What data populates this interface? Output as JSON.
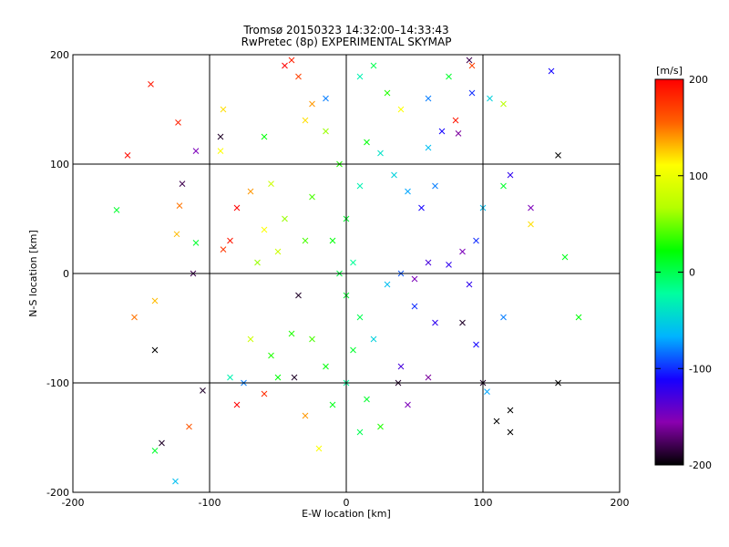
{
  "chart_data": {
    "type": "scatter",
    "title": "Tromsø 20150323 14:32:00–14:33:43",
    "subtitle": "RwPretec (8p) EXPERIMENTAL SKYMAP",
    "xlabel": "E-W location [km]",
    "ylabel": "N-S location [km]",
    "xlim": [
      -200,
      200
    ],
    "ylim": [
      -200,
      200
    ],
    "xticks": [
      "-200",
      "-100",
      "0",
      "100",
      "200"
    ],
    "yticks": [
      "-200",
      "-100",
      "0",
      "100",
      "200"
    ],
    "grid_lines": [
      -100,
      0,
      100
    ],
    "colorbar": {
      "label": "[m/s]",
      "range": [
        -200,
        200
      ],
      "ticks": [
        "200",
        "100",
        "0",
        "-100",
        "-200"
      ],
      "colormap": [
        "#000000",
        "#8a00b0",
        "#1600ff",
        "#00b4ff",
        "#00ffa0",
        "#00ff00",
        "#b4ff00",
        "#ffff00",
        "#ff6000",
        "#ff0000"
      ]
    },
    "markers": {
      "cross": "x",
      "dot": "."
    },
    "series": [
      {
        "values": [
          {
            "x": -160,
            "y": 108,
            "v": 195,
            "m": "x"
          },
          {
            "x": -143,
            "y": 173,
            "v": 190,
            "m": "x"
          },
          {
            "x": -123,
            "y": 138,
            "v": 185,
            "m": "x"
          },
          {
            "x": -110,
            "y": 112,
            "v": -150,
            "m": "x"
          },
          {
            "x": -168,
            "y": 58,
            "v": 10,
            "m": "x"
          },
          {
            "x": -120,
            "y": 82,
            "v": -180,
            "m": "x"
          },
          {
            "x": -110,
            "y": 28,
            "v": 10,
            "m": "x"
          },
          {
            "x": -122,
            "y": 62,
            "v": 150,
            "m": "x"
          },
          {
            "x": -124,
            "y": 36,
            "v": 130,
            "m": "x"
          },
          {
            "x": -112,
            "y": 0,
            "v": -180,
            "m": "x"
          },
          {
            "x": -140,
            "y": -25,
            "v": 130,
            "m": "x"
          },
          {
            "x": -155,
            "y": -40,
            "v": 150,
            "m": "x"
          },
          {
            "x": -140,
            "y": -70,
            "v": -200,
            "m": "x"
          },
          {
            "x": -105,
            "y": -107,
            "v": -190,
            "m": "x"
          },
          {
            "x": -135,
            "y": -155,
            "v": -190,
            "m": "x"
          },
          {
            "x": -140,
            "y": -162,
            "v": 10,
            "m": "x"
          },
          {
            "x": -125,
            "y": -190,
            "v": -60,
            "m": "x"
          },
          {
            "x": -115,
            "y": -140,
            "v": 160,
            "m": "x"
          },
          {
            "x": -90,
            "y": 150,
            "v": 120,
            "m": "x"
          },
          {
            "x": -92,
            "y": 112,
            "v": 110,
            "m": "x"
          },
          {
            "x": -80,
            "y": 60,
            "v": 200,
            "m": "x"
          },
          {
            "x": -85,
            "y": 30,
            "v": 190,
            "m": "x"
          },
          {
            "x": -90,
            "y": 22,
            "v": 175,
            "m": "x"
          },
          {
            "x": -70,
            "y": 75,
            "v": 140,
            "m": "x"
          },
          {
            "x": -60,
            "y": 40,
            "v": 110,
            "m": "x"
          },
          {
            "x": -55,
            "y": 82,
            "v": 80,
            "m": "x"
          },
          {
            "x": -45,
            "y": 190,
            "v": 200,
            "m": "x"
          },
          {
            "x": -40,
            "y": 195,
            "v": 185,
            "m": "x"
          },
          {
            "x": -35,
            "y": 180,
            "v": 170,
            "m": "x"
          },
          {
            "x": -25,
            "y": 155,
            "v": 140,
            "m": "x"
          },
          {
            "x": -30,
            "y": 140,
            "v": 120,
            "m": "x"
          },
          {
            "x": -15,
            "y": 160,
            "v": -80,
            "m": "x"
          },
          {
            "x": -92,
            "y": 125,
            "v": -190,
            "m": "x"
          },
          {
            "x": -60,
            "y": 125,
            "v": 20,
            "m": "x"
          },
          {
            "x": -45,
            "y": 50,
            "v": 60,
            "m": "x"
          },
          {
            "x": -30,
            "y": 30,
            "v": 40,
            "m": "x"
          },
          {
            "x": -35,
            "y": -20,
            "v": -190,
            "m": "x"
          },
          {
            "x": -40,
            "y": -55,
            "v": 30,
            "m": "x"
          },
          {
            "x": -50,
            "y": -95,
            "v": 20,
            "m": "x"
          },
          {
            "x": -38,
            "y": -95,
            "v": -190,
            "m": "x"
          },
          {
            "x": -60,
            "y": -110,
            "v": 180,
            "m": "x"
          },
          {
            "x": -30,
            "y": -130,
            "v": 140,
            "m": "x"
          },
          {
            "x": -20,
            "y": -160,
            "v": 110,
            "m": "x"
          },
          {
            "x": -10,
            "y": -120,
            "v": 15,
            "m": "x"
          },
          {
            "x": -80,
            "y": -120,
            "v": 200,
            "m": "x"
          },
          {
            "x": -75,
            "y": -100,
            "v": -80,
            "m": "x"
          },
          {
            "x": 10,
            "y": 180,
            "v": -30,
            "m": "x"
          },
          {
            "x": 20,
            "y": 190,
            "v": 0,
            "m": "x"
          },
          {
            "x": 30,
            "y": 165,
            "v": 30,
            "m": "x"
          },
          {
            "x": 40,
            "y": 150,
            "v": 110,
            "m": "x"
          },
          {
            "x": 60,
            "y": 160,
            "v": -80,
            "m": "x"
          },
          {
            "x": 75,
            "y": 180,
            "v": 10,
            "m": "x"
          },
          {
            "x": 90,
            "y": 195,
            "v": -180,
            "m": "x"
          },
          {
            "x": 92,
            "y": 190,
            "v": 170,
            "m": "x"
          },
          {
            "x": 150,
            "y": 185,
            "v": -110,
            "m": "x"
          },
          {
            "x": 115,
            "y": 155,
            "v": 70,
            "m": "x"
          },
          {
            "x": 105,
            "y": 160,
            "v": -50,
            "m": "x"
          },
          {
            "x": 92,
            "y": 165,
            "v": -100,
            "m": "x"
          },
          {
            "x": 80,
            "y": 140,
            "v": 190,
            "m": "x"
          },
          {
            "x": 82,
            "y": 128,
            "v": -160,
            "m": "x"
          },
          {
            "x": 70,
            "y": 130,
            "v": -110,
            "m": "x"
          },
          {
            "x": 60,
            "y": 115,
            "v": -60,
            "m": "x"
          },
          {
            "x": 155,
            "y": 108,
            "v": -200,
            "m": "x"
          },
          {
            "x": 120,
            "y": 90,
            "v": -120,
            "m": "x"
          },
          {
            "x": 135,
            "y": 60,
            "v": -150,
            "m": "x"
          },
          {
            "x": 100,
            "y": 60,
            "v": -60,
            "m": "x"
          },
          {
            "x": 95,
            "y": 30,
            "v": -100,
            "m": "x"
          },
          {
            "x": 85,
            "y": 20,
            "v": -150,
            "m": "x"
          },
          {
            "x": 75,
            "y": 8,
            "v": -120,
            "m": "x"
          },
          {
            "x": 60,
            "y": 10,
            "v": -130,
            "m": "x"
          },
          {
            "x": 50,
            "y": -5,
            "v": -150,
            "m": "x"
          },
          {
            "x": 40,
            "y": 0,
            "v": -90,
            "m": "x"
          },
          {
            "x": 30,
            "y": -10,
            "v": -60,
            "m": "x"
          },
          {
            "x": 55,
            "y": 60,
            "v": -110,
            "m": "x"
          },
          {
            "x": 65,
            "y": 80,
            "v": -80,
            "m": "x"
          },
          {
            "x": 45,
            "y": 75,
            "v": -70,
            "m": "x"
          },
          {
            "x": 90,
            "y": -10,
            "v": -120,
            "m": "x"
          },
          {
            "x": 85,
            "y": -45,
            "v": -190,
            "m": "x"
          },
          {
            "x": 115,
            "y": -40,
            "v": -80,
            "m": "x"
          },
          {
            "x": 95,
            "y": -65,
            "v": -110,
            "m": "x"
          },
          {
            "x": 100,
            "y": -100,
            "v": -190,
            "m": "x"
          },
          {
            "x": 155,
            "y": -100,
            "v": -200,
            "m": "x"
          },
          {
            "x": 120,
            "y": -125,
            "v": -200,
            "m": "x"
          },
          {
            "x": 103,
            "y": -108,
            "v": -70,
            "m": "x"
          },
          {
            "x": 110,
            "y": -135,
            "v": -200,
            "m": "x"
          },
          {
            "x": 120,
            "y": -145,
            "v": -200,
            "m": "x"
          },
          {
            "x": 60,
            "y": -95,
            "v": -160,
            "m": "x"
          },
          {
            "x": 40,
            "y": -85,
            "v": -130,
            "m": "x"
          },
          {
            "x": 45,
            "y": -120,
            "v": -150,
            "m": "x"
          },
          {
            "x": 38,
            "y": -100,
            "v": -190,
            "m": "x"
          },
          {
            "x": 65,
            "y": -45,
            "v": -120,
            "m": "x"
          },
          {
            "x": 50,
            "y": -30,
            "v": -100,
            "m": "x"
          },
          {
            "x": 115,
            "y": 80,
            "v": 10,
            "m": "x"
          },
          {
            "x": 170,
            "y": -40,
            "v": 20,
            "m": "x"
          },
          {
            "x": 160,
            "y": 15,
            "v": 15,
            "m": "x"
          },
          {
            "x": 135,
            "y": 45,
            "v": 120,
            "m": "x"
          },
          {
            "x": 10,
            "y": -145,
            "v": 0,
            "m": "x"
          },
          {
            "x": 25,
            "y": -140,
            "v": 30,
            "m": "x"
          },
          {
            "x": 15,
            "y": -115,
            "v": 10,
            "m": "x"
          },
          {
            "x": 0,
            "y": -100,
            "v": -20,
            "m": "x"
          },
          {
            "x": 5,
            "y": -70,
            "v": 10,
            "m": "x"
          },
          {
            "x": 20,
            "y": -60,
            "v": -50,
            "m": "x"
          },
          {
            "x": 10,
            "y": -40,
            "v": 0,
            "m": "x"
          },
          {
            "x": 0,
            "y": -20,
            "v": 10,
            "m": "x"
          },
          {
            "x": -5,
            "y": 0,
            "v": 5,
            "m": "x"
          },
          {
            "x": 5,
            "y": 10,
            "v": -20,
            "m": "x"
          },
          {
            "x": -10,
            "y": 30,
            "v": 20,
            "m": "x"
          },
          {
            "x": 0,
            "y": 50,
            "v": 10,
            "m": "x"
          },
          {
            "x": 10,
            "y": 80,
            "v": -30,
            "m": "x"
          },
          {
            "x": -5,
            "y": 100,
            "v": 30,
            "m": "x"
          },
          {
            "x": 15,
            "y": 120,
            "v": 20,
            "m": "x"
          },
          {
            "x": -15,
            "y": 130,
            "v": 60,
            "m": "x"
          },
          {
            "x": 25,
            "y": 110,
            "v": -40,
            "m": "x"
          },
          {
            "x": 35,
            "y": 90,
            "v": -50,
            "m": "x"
          },
          {
            "x": -25,
            "y": 70,
            "v": 40,
            "m": "x"
          },
          {
            "x": -50,
            "y": 20,
            "v": 80,
            "m": "x"
          },
          {
            "x": -65,
            "y": 10,
            "v": 60,
            "m": "x"
          },
          {
            "x": -25,
            "y": -60,
            "v": 40,
            "m": "x"
          },
          {
            "x": -15,
            "y": -85,
            "v": 20,
            "m": "x"
          },
          {
            "x": -55,
            "y": -75,
            "v": 30,
            "m": "x"
          },
          {
            "x": -70,
            "y": -60,
            "v": 80,
            "m": "x"
          },
          {
            "x": -85,
            "y": -95,
            "v": -30,
            "m": "x"
          }
        ]
      }
    ]
  }
}
